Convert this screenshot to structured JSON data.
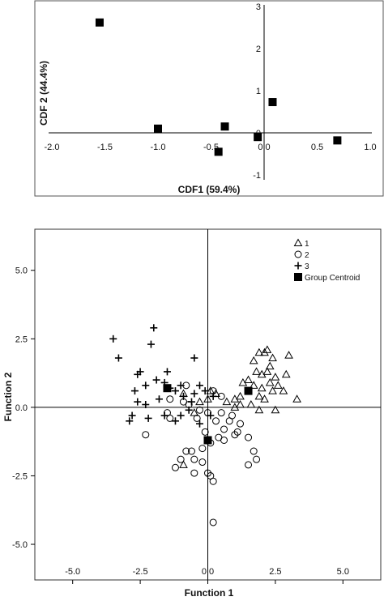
{
  "chart_data": [
    {
      "type": "scatter",
      "title": "",
      "xlabel": "CDF1 (59.4%)",
      "ylabel": "CDF 2 (44.4%)",
      "xlim": [
        -2.0,
        1.0
      ],
      "ylim": [
        -1,
        3
      ],
      "xticks": [
        "-2.0",
        "-1.5",
        "-1.0",
        "-0.5",
        "0.0",
        "0.5",
        "1.0"
      ],
      "yticks": [
        "-1",
        "0",
        "1",
        "2",
        "3"
      ],
      "grid": false,
      "marker": "square",
      "points": [
        {
          "x": -1.55,
          "y": 2.62
        },
        {
          "x": -1.0,
          "y": 0.1
        },
        {
          "x": -0.37,
          "y": 0.15
        },
        {
          "x": -0.43,
          "y": -0.45
        },
        {
          "x": -0.06,
          "y": -0.1
        },
        {
          "x": 0.08,
          "y": 0.73
        },
        {
          "x": 0.69,
          "y": -0.18
        }
      ]
    },
    {
      "type": "scatter",
      "title": "",
      "xlabel": "Function 1",
      "ylabel": "Function 2",
      "xlim": [
        -6.4,
        6.4
      ],
      "ylim": [
        -6.3,
        6.5
      ],
      "xticks": [
        "-5.0",
        "-2.5",
        "0.0",
        "2.5",
        "5.0"
      ],
      "yticks": [
        "5.0",
        "2.5",
        "0.0",
        "-2.5",
        "-5.0"
      ],
      "grid": false,
      "legend_position": "top-right",
      "legend": [
        "1",
        "2",
        "3",
        "Group Centroid"
      ],
      "series": [
        {
          "name": "1",
          "marker": "triangle",
          "points": [
            [
              1.5,
              1.0
            ],
            [
              1.7,
              1.7
            ],
            [
              1.9,
              2.0
            ],
            [
              2.1,
              2.0
            ],
            [
              2.4,
              1.8
            ],
            [
              2.3,
              1.5
            ],
            [
              2.0,
              1.2
            ],
            [
              1.8,
              1.3
            ],
            [
              2.2,
              1.3
            ],
            [
              2.5,
              1.1
            ],
            [
              2.6,
              0.8
            ],
            [
              2.4,
              0.6
            ],
            [
              2.3,
              0.9
            ],
            [
              2.0,
              0.7
            ],
            [
              1.9,
              0.4
            ],
            [
              1.7,
              0.8
            ],
            [
              1.3,
              0.9
            ],
            [
              1.2,
              0.4
            ],
            [
              1.0,
              0.3
            ],
            [
              1.2,
              0.1
            ],
            [
              1.6,
              0.1
            ],
            [
              1.9,
              -0.1
            ],
            [
              2.1,
              0.3
            ],
            [
              2.8,
              0.6
            ],
            [
              2.9,
              1.2
            ],
            [
              3.0,
              1.9
            ],
            [
              3.3,
              0.3
            ],
            [
              2.2,
              2.1
            ],
            [
              2.5,
              -0.1
            ],
            [
              1.0,
              0.0
            ],
            [
              0.7,
              0.2
            ],
            [
              0.3,
              0.5
            ],
            [
              0.1,
              0.6
            ],
            [
              -0.3,
              0.2
            ],
            [
              0.0,
              0.3
            ],
            [
              -0.9,
              0.5
            ],
            [
              -0.5,
              -0.2
            ],
            [
              -0.9,
              -2.1
            ]
          ]
        },
        {
          "name": "2",
          "marker": "circle",
          "points": [
            [
              0.5,
              0.4
            ],
            [
              0.2,
              0.6
            ],
            [
              -0.9,
              0.2
            ],
            [
              -0.7,
              0.1
            ],
            [
              -0.3,
              -0.1
            ],
            [
              -0.4,
              -0.4
            ],
            [
              0.0,
              -0.2
            ],
            [
              0.3,
              -0.5
            ],
            [
              0.6,
              -0.8
            ],
            [
              0.4,
              -1.1
            ],
            [
              0.1,
              -1.3
            ],
            [
              -0.2,
              -1.5
            ],
            [
              -0.6,
              -1.6
            ],
            [
              -0.8,
              -1.6
            ],
            [
              -0.5,
              -1.9
            ],
            [
              -0.2,
              -2.0
            ],
            [
              -1.2,
              -2.2
            ],
            [
              -1.0,
              -1.9
            ],
            [
              0.0,
              -2.4
            ],
            [
              0.1,
              -2.5
            ],
            [
              0.2,
              -2.7
            ],
            [
              -0.5,
              -2.4
            ],
            [
              1.0,
              -1.0
            ],
            [
              1.7,
              -1.6
            ],
            [
              1.8,
              -1.9
            ],
            [
              1.5,
              -2.1
            ],
            [
              1.5,
              -1.1
            ],
            [
              0.8,
              -0.5
            ],
            [
              0.5,
              -0.2
            ],
            [
              -1.4,
              -0.4
            ],
            [
              -1.4,
              0.3
            ],
            [
              -0.8,
              0.8
            ],
            [
              -1.5,
              -0.2
            ],
            [
              -2.3,
              -1.0
            ],
            [
              0.2,
              -4.2
            ],
            [
              1.1,
              -0.9
            ],
            [
              1.2,
              -0.6
            ],
            [
              0.6,
              -1.2
            ],
            [
              0.9,
              -0.3
            ],
            [
              -0.1,
              -0.9
            ]
          ]
        },
        {
          "name": "3",
          "marker": "plus",
          "points": [
            [
              -3.5,
              2.5
            ],
            [
              -3.3,
              1.8
            ],
            [
              -2.0,
              2.9
            ],
            [
              -2.1,
              2.3
            ],
            [
              -2.5,
              1.3
            ],
            [
              -2.6,
              1.2
            ],
            [
              -1.5,
              1.3
            ],
            [
              -0.5,
              1.8
            ],
            [
              -1.9,
              1.0
            ],
            [
              -2.3,
              0.8
            ],
            [
              -2.7,
              0.6
            ],
            [
              -2.6,
              0.2
            ],
            [
              -2.3,
              0.1
            ],
            [
              -2.2,
              -0.4
            ],
            [
              -1.8,
              0.3
            ],
            [
              -1.6,
              0.9
            ],
            [
              -1.2,
              0.6
            ],
            [
              -1.0,
              0.8
            ],
            [
              -0.9,
              0.4
            ],
            [
              -0.5,
              0.5
            ],
            [
              -0.3,
              0.8
            ],
            [
              -0.1,
              0.6
            ],
            [
              0.2,
              0.4
            ],
            [
              -0.6,
              0.2
            ],
            [
              -0.7,
              -0.1
            ],
            [
              -1.0,
              -0.3
            ],
            [
              -1.2,
              -0.5
            ],
            [
              -0.3,
              -0.6
            ],
            [
              0.1,
              -0.3
            ],
            [
              -2.8,
              -0.3
            ],
            [
              -2.9,
              -0.5
            ],
            [
              -1.6,
              -0.3
            ],
            [
              -1.4,
              0.7
            ]
          ]
        },
        {
          "name": "Group Centroid",
          "marker": "square",
          "points": [
            [
              1.5,
              0.6
            ],
            [
              -1.5,
              0.7
            ],
            [
              0.0,
              -1.2
            ]
          ]
        }
      ]
    }
  ]
}
